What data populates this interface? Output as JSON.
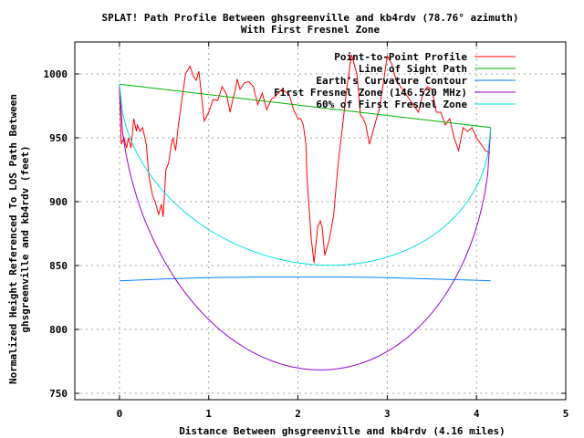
{
  "chart_data": {
    "type": "line",
    "title": "SPLAT! Path Profile Between ghsgreenville and kb4rdv (78.76° azimuth)",
    "subtitle": "With First Fresnel Zone",
    "xlabel": "Distance Between ghsgreenville and kb4rdv (4.16 miles)",
    "ylabel_line1": "Normalized Height Referenced To LOS Path Between",
    "ylabel_line2": "ghsgreenville and kb4rdv (feet)",
    "xlim": [
      -0.5,
      5
    ],
    "ylim": [
      745,
      1025
    ],
    "xticks": [
      0,
      1,
      2,
      3,
      4,
      5
    ],
    "yticks": [
      750,
      800,
      850,
      900,
      950,
      1000
    ],
    "xtick_labels": [
      "0",
      "1",
      "2",
      "3",
      "4",
      "5"
    ],
    "ytick_labels": [
      "750",
      "800",
      "850",
      "900",
      "950",
      "1000"
    ],
    "grid": true,
    "legend_position": "top-right",
    "series": [
      {
        "name": "Point-to-Point Profile",
        "color": "#ff0000",
        "x": [
          0.0,
          0.02,
          0.05,
          0.08,
          0.1,
          0.13,
          0.16,
          0.19,
          0.2,
          0.23,
          0.26,
          0.3,
          0.33,
          0.37,
          0.4,
          0.44,
          0.47,
          0.49,
          0.52,
          0.55,
          0.58,
          0.6,
          0.63,
          0.66,
          0.7,
          0.74,
          0.79,
          0.83,
          0.86,
          0.89,
          0.95,
          1.0,
          1.05,
          1.1,
          1.15,
          1.2,
          1.24,
          1.27,
          1.3,
          1.32,
          1.35,
          1.4,
          1.45,
          1.5,
          1.55,
          1.6,
          1.65,
          1.7,
          1.74,
          1.78,
          1.82,
          1.86,
          1.9,
          1.95,
          2.0,
          2.03,
          2.06,
          2.09,
          2.1,
          2.12,
          2.14,
          2.15,
          2.18,
          2.22,
          2.25,
          2.27,
          2.3,
          2.35,
          2.4,
          2.45,
          2.5,
          2.55,
          2.6,
          2.62,
          2.64,
          2.66,
          2.68,
          2.7,
          2.73,
          2.76,
          2.8,
          2.84,
          2.88,
          2.91,
          2.95,
          3.0,
          3.05,
          3.1,
          3.15,
          3.2,
          3.25,
          3.3,
          3.35,
          3.4,
          3.45,
          3.5,
          3.55,
          3.6,
          3.65,
          3.7,
          3.75,
          3.8,
          3.85,
          3.9,
          3.95,
          4.0,
          4.05,
          4.1,
          4.15
        ],
        "values": [
          990,
          945,
          950,
          942,
          950,
          942,
          965,
          955,
          960,
          955,
          958,
          945,
          920,
          905,
          900,
          890,
          898,
          888,
          925,
          930,
          944,
          950,
          940,
          960,
          980,
          1000,
          1006,
          998,
          995,
          1002,
          963,
          970,
          980,
          979,
          990,
          984,
          970,
          980,
          988,
          996,
          988,
          993,
          994,
          990,
          976,
          985,
          972,
          980,
          982,
          985,
          988,
          986,
          984,
          972,
          965,
          965,
          960,
          945,
          920,
          900,
          880,
          870,
          852,
          880,
          885,
          880,
          858,
          870,
          890,
          930,
          960,
          990,
          1015,
          1010,
          1005,
          1000,
          985,
          968,
          965,
          960,
          945,
          955,
          965,
          972,
          990,
          1014,
          1008,
          995,
          990,
          985,
          980,
          975,
          970,
          985,
          990,
          988,
          970,
          970,
          960,
          965,
          950,
          940,
          958,
          955,
          958,
          950,
          945,
          940,
          938
        ]
      },
      {
        "name": "Line of Sight Path",
        "color": "#00b000",
        "x": [
          0.0,
          4.16
        ],
        "values": [
          992,
          958
        ]
      },
      {
        "name": "Earth's Curvature Contour",
        "color": "#0080ff",
        "x": [
          0.0,
          0.5,
          1.0,
          1.5,
          2.0,
          2.5,
          3.0,
          3.5,
          4.0,
          4.16
        ],
        "values": [
          838,
          839.5,
          840.5,
          841,
          841,
          841,
          840.5,
          839.5,
          838.5,
          838
        ]
      },
      {
        "name": "First Fresnel Zone (146.520 MHz)",
        "color": "#9400d3",
        "formula": "los - r1",
        "r1_mid_feet": 206
      },
      {
        "name": "60% of First Fresnel Zone",
        "color": "#00e0e0",
        "formula": "los - 0.6*r1",
        "fraction": 0.6
      }
    ]
  }
}
